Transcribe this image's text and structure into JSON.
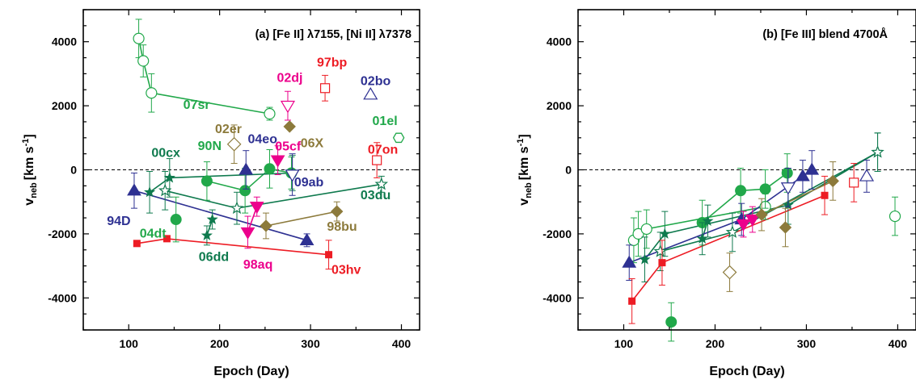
{
  "colors": {
    "green": "#21a84a",
    "teal": "#0f7a4e",
    "blue": "#2e3192",
    "red": "#ed1c24",
    "magenta": "#ec008c",
    "olive": "#8c7a3b",
    "frame": "#000000"
  },
  "chart_data": [
    {
      "type": "scatter",
      "title": "(a) [Fe II] λ7155, [Ni II] λ7378",
      "xlabel": "Epoch (Day)",
      "ylabel_main": "v",
      "ylabel_sub": "neb",
      "ylabel_units": "[km s",
      "ylabel_sup": "-1",
      "ylabel_close": "]",
      "xlim": [
        50,
        420
      ],
      "ylim": [
        -5000,
        5000
      ],
      "xticks": [
        "100",
        "200",
        "300",
        "400"
      ],
      "xtick_values": [
        100,
        200,
        300,
        400
      ],
      "yticks": [
        "-4000",
        "-2000",
        "0",
        "2000",
        "4000"
      ],
      "ytick_values": [
        -4000,
        -2000,
        0,
        2000,
        4000
      ],
      "zero_line": true,
      "series": [
        {
          "name": "07sr",
          "color": "green",
          "marker": "circle-open",
          "line": true,
          "points": [
            [
              111,
              4100,
              600
            ],
            [
              116,
              3400,
              500
            ],
            [
              125,
              2400,
              600
            ],
            [
              255,
              1750,
              200
            ]
          ]
        },
        {
          "name": "90N",
          "color": "green",
          "marker": "circle",
          "line": true,
          "points": [
            [
              186,
              -350,
              600
            ],
            [
              228,
              -650,
              700
            ],
            [
              255,
              30,
              600
            ],
            [
              279,
              -100,
              500
            ]
          ]
        },
        {
          "name": "04dt",
          "color": "green",
          "marker": "circle",
          "line": false,
          "points": [
            [
              152,
              -1550,
              700
            ]
          ]
        },
        {
          "name": "01el",
          "color": "green",
          "marker": "hexagon-open",
          "line": false,
          "points": [
            [
              397,
              1000,
              0
            ]
          ]
        },
        {
          "name": "00cx",
          "color": "teal",
          "marker": "star",
          "line": true,
          "points": [
            [
              123,
              -700,
              650
            ],
            [
              145,
              -250,
              600
            ],
            [
              280,
              -100,
              550
            ]
          ]
        },
        {
          "name": "06dd",
          "color": "teal",
          "marker": "star",
          "line": true,
          "points": [
            [
              186,
              -2050,
              300
            ],
            [
              192,
              -1550,
              300
            ]
          ]
        },
        {
          "name": "03du",
          "color": "teal",
          "marker": "star-open",
          "line": true,
          "points": [
            [
              140,
              -650,
              600
            ],
            [
              219,
              -1200,
              500
            ],
            [
              378,
              -450,
              250
            ]
          ]
        },
        {
          "name": "94D",
          "color": "blue",
          "marker": "triangle-up",
          "line": true,
          "points": [
            [
              106,
              -650,
              550
            ],
            [
              296,
              -2200,
              200
            ]
          ]
        },
        {
          "name": "04eo",
          "color": "blue",
          "marker": "triangle-up",
          "line": false,
          "points": [
            [
              229,
              0,
              600
            ]
          ]
        },
        {
          "name": "09ab",
          "color": "blue",
          "marker": "triangle-down-open",
          "line": false,
          "points": [
            [
              280,
              -150,
              650
            ]
          ]
        },
        {
          "name": "02bo",
          "color": "blue",
          "marker": "triangle-up-open",
          "line": false,
          "points": [
            [
              366,
              2350,
              0
            ]
          ]
        },
        {
          "name": "03hv",
          "color": "red",
          "marker": "square",
          "line": true,
          "points": [
            [
              109,
              -2300,
              0
            ],
            [
              142,
              -2150,
              0
            ],
            [
              320,
              -2650,
              450
            ]
          ]
        },
        {
          "name": "97bp",
          "color": "red",
          "marker": "square-open",
          "line": false,
          "points": [
            [
              316,
              2550,
              400
            ]
          ]
        },
        {
          "name": "07on",
          "color": "red",
          "marker": "square-open",
          "line": false,
          "points": [
            [
              373,
              300,
              550
            ]
          ]
        },
        {
          "name": "02dj",
          "color": "magenta",
          "marker": "triangle-down-open",
          "line": false,
          "points": [
            [
              275,
              2000,
              450
            ]
          ]
        },
        {
          "name": "05cf",
          "color": "magenta",
          "marker": "triangle-down",
          "line": false,
          "points": [
            [
              264,
              300,
              450
            ]
          ]
        },
        {
          "name": "98aq",
          "color": "magenta",
          "marker": "triangle-down",
          "line": true,
          "points": [
            [
              231,
              -1950,
              500
            ],
            [
              241,
              -1150,
              300
            ]
          ]
        },
        {
          "name": "02er",
          "color": "olive",
          "marker": "diamond-open",
          "line": false,
          "points": [
            [
              216,
              800,
              600
            ]
          ]
        },
        {
          "name": "06X",
          "color": "olive",
          "marker": "diamond",
          "line": false,
          "points": [
            [
              277,
              1350,
              0
            ]
          ]
        },
        {
          "name": "98bu",
          "color": "olive",
          "marker": "diamond",
          "line": true,
          "points": [
            [
              251,
              -1750,
              400
            ],
            [
              329,
              -1300,
              300
            ]
          ]
        }
      ],
      "labels": [
        {
          "text": "07sr",
          "color": "green",
          "x": 160,
          "y": 1900
        },
        {
          "text": "02er",
          "color": "olive",
          "x": 195,
          "y": 1150
        },
        {
          "text": "00cx",
          "color": "teal",
          "x": 125,
          "y": 400
        },
        {
          "text": "90N",
          "color": "green",
          "x": 176,
          "y": 620
        },
        {
          "text": "04eo",
          "color": "blue",
          "x": 231,
          "y": 830
        },
        {
          "text": "02dj",
          "color": "magenta",
          "x": 263,
          "y": 2750
        },
        {
          "text": "97bp",
          "color": "red",
          "x": 307,
          "y": 3230
        },
        {
          "text": "02bo",
          "color": "blue",
          "x": 355,
          "y": 2640
        },
        {
          "text": "06X",
          "color": "olive",
          "x": 289,
          "y": 700
        },
        {
          "text": "01el",
          "color": "green",
          "x": 368,
          "y": 1400
        },
        {
          "text": "05cf",
          "color": "magenta",
          "x": 261,
          "y": 600
        },
        {
          "text": "07on",
          "color": "red",
          "x": 363,
          "y": 500
        },
        {
          "text": "09ab",
          "color": "blue",
          "x": 282,
          "y": -520
        },
        {
          "text": "03du",
          "color": "teal",
          "x": 355,
          "y": -920
        },
        {
          "text": "94D",
          "color": "blue",
          "x": 76,
          "y": -1720
        },
        {
          "text": "04dt",
          "color": "green",
          "x": 112,
          "y": -2120
        },
        {
          "text": "98bu",
          "color": "olive",
          "x": 318,
          "y": -1900
        },
        {
          "text": "06dd",
          "color": "teal",
          "x": 177,
          "y": -2850
        },
        {
          "text": "98aq",
          "color": "magenta",
          "x": 226,
          "y": -3080
        },
        {
          "text": "03hv",
          "color": "red",
          "x": 323,
          "y": -3250
        }
      ]
    },
    {
      "type": "scatter",
      "title": "(b) [Fe III] blend 4700Å",
      "xlabel": "Epoch (Day)",
      "ylabel_main": "v",
      "ylabel_sub": "neb",
      "ylabel_units": "[km s",
      "ylabel_sup": "-1",
      "ylabel_close": "]",
      "xlim": [
        50,
        420
      ],
      "ylim": [
        -5000,
        5000
      ],
      "xticks": [
        "100",
        "200",
        "300",
        "400"
      ],
      "xtick_values": [
        100,
        200,
        300,
        400
      ],
      "yticks": [
        "-4000",
        "-2000",
        "0",
        "2000",
        "4000"
      ],
      "ytick_values": [
        -4000,
        -2000,
        0,
        2000,
        4000
      ],
      "zero_line": true,
      "series": [
        {
          "name": "07sr",
          "color": "green",
          "marker": "circle-open",
          "line": true,
          "points": [
            [
              111,
              -2200,
              700
            ],
            [
              116,
              -2000,
              700
            ],
            [
              125,
              -1850,
              600
            ],
            [
              255,
              -1150,
              400
            ]
          ]
        },
        {
          "name": "90N",
          "color": "green",
          "marker": "circle",
          "line": true,
          "points": [
            [
              186,
              -1650,
              700
            ],
            [
              228,
              -650,
              700
            ],
            [
              255,
              -600,
              600
            ],
            [
              279,
              -100,
              600
            ]
          ]
        },
        {
          "name": "04dt",
          "color": "green",
          "marker": "circle",
          "line": false,
          "points": [
            [
              152,
              -4750,
              600
            ]
          ]
        },
        {
          "name": "01el",
          "color": "green",
          "marker": "circle-open",
          "line": false,
          "points": [
            [
              397,
              -1450,
              600
            ]
          ]
        },
        {
          "name": "00cx",
          "color": "teal",
          "marker": "star",
          "line": true,
          "points": [
            [
              123,
              -2800,
              700
            ],
            [
              145,
              -2000,
              700
            ],
            [
              280,
              -1100,
              600
            ],
            [
              378,
              550,
              600
            ]
          ]
        },
        {
          "name": "06dd",
          "color": "teal",
          "marker": "star",
          "line": true,
          "points": [
            [
              186,
              -2150,
              500
            ],
            [
              192,
              -1600,
              500
            ]
          ]
        },
        {
          "name": "03du",
          "color": "teal",
          "marker": "star-open",
          "line": true,
          "points": [
            [
              140,
              -2550,
              600
            ],
            [
              219,
              -1950,
              600
            ],
            [
              378,
              550,
              600
            ]
          ]
        },
        {
          "name": "94D",
          "color": "blue",
          "marker": "triangle-up",
          "line": true,
          "points": [
            [
              106,
              -2900,
              550
            ],
            [
              229,
              -1550,
              500
            ],
            [
              296,
              -200,
              500
            ],
            [
              306,
              0,
              600
            ]
          ]
        },
        {
          "name": "09ab",
          "color": "blue",
          "marker": "triangle-down-open",
          "line": false,
          "points": [
            [
              280,
              -550,
              600
            ]
          ]
        },
        {
          "name": "02bo",
          "color": "blue",
          "marker": "triangle-up-open",
          "line": false,
          "points": [
            [
              366,
              -200,
              500
            ]
          ]
        },
        {
          "name": "03hv",
          "color": "red",
          "marker": "square",
          "line": true,
          "points": [
            [
              109,
              -4100,
              700
            ],
            [
              142,
              -2900,
              700
            ],
            [
              320,
              -800,
              600
            ]
          ]
        },
        {
          "name": "07on",
          "color": "red",
          "marker": "square-open",
          "line": false,
          "points": [
            [
              352,
              -400,
              600
            ]
          ]
        },
        {
          "name": "98aq",
          "color": "magenta",
          "marker": "triangle-down",
          "line": true,
          "points": [
            [
              231,
              -1700,
              400
            ],
            [
              241,
              -1550,
              400
            ]
          ]
        },
        {
          "name": "02er",
          "color": "olive",
          "marker": "diamond-open",
          "line": false,
          "points": [
            [
              216,
              -3200,
              600
            ]
          ]
        },
        {
          "name": "98bu",
          "color": "olive",
          "marker": "diamond",
          "line": true,
          "points": [
            [
              251,
              -1400,
              500
            ],
            [
              329,
              -350,
              600
            ]
          ]
        },
        {
          "name": "06X",
          "color": "olive",
          "marker": "diamond",
          "line": false,
          "points": [
            [
              277,
              -1800,
              600
            ]
          ]
        }
      ],
      "labels": []
    }
  ]
}
